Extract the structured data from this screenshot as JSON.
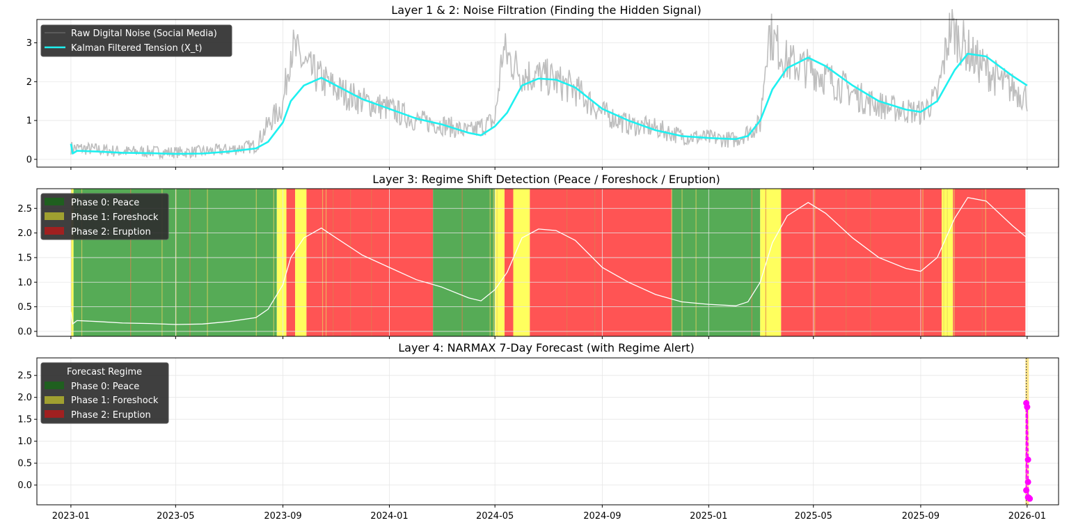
{
  "chart_data": [
    {
      "type": "line",
      "title": "Layer 1 & 2: Noise Filtration (Finding the Hidden Signal)",
      "xlabel": "",
      "ylabel": "",
      "ylim": [
        -0.2,
        3.6
      ],
      "yticks": [
        "0",
        "1",
        "2",
        "3"
      ],
      "grid": true,
      "legend": {
        "placement": "top-left",
        "entries": [
          "Raw Digital Noise (Social Media)",
          "Kalman Filtered Tension (X_t)"
        ]
      },
      "colors": {
        "raw": "#bebebe",
        "kalman": "#1ff0f0"
      },
      "series": [
        {
          "name": "Kalman Filtered Tension (X_t)",
          "x": [
            "2023-01-01",
            "2023-01-03",
            "2023-01-08",
            "2023-02-01",
            "2023-03-01",
            "2023-04-01",
            "2023-05-01",
            "2023-06-01",
            "2023-07-01",
            "2023-08-01",
            "2023-08-15",
            "2023-09-01",
            "2023-09-10",
            "2023-09-25",
            "2023-10-15",
            "2023-11-01",
            "2023-12-01",
            "2024-01-01",
            "2024-02-01",
            "2024-03-01",
            "2024-04-01",
            "2024-04-15",
            "2024-05-01",
            "2024-05-15",
            "2024-06-01",
            "2024-06-20",
            "2024-07-10",
            "2024-08-01",
            "2024-09-01",
            "2024-10-01",
            "2024-11-01",
            "2024-12-01",
            "2025-01-01",
            "2025-02-01",
            "2025-02-15",
            "2025-03-01",
            "2025-03-15",
            "2025-04-01",
            "2025-04-25",
            "2025-05-15",
            "2025-06-15",
            "2025-07-15",
            "2025-08-15",
            "2025-09-01",
            "2025-09-20",
            "2025-10-10",
            "2025-10-25",
            "2025-11-15",
            "2025-12-15",
            "2026-01-01"
          ],
          "values": [
            0.4,
            0.15,
            0.22,
            0.2,
            0.17,
            0.16,
            0.14,
            0.15,
            0.2,
            0.28,
            0.45,
            0.95,
            1.5,
            1.9,
            2.1,
            1.9,
            1.55,
            1.3,
            1.05,
            0.9,
            0.68,
            0.62,
            0.85,
            1.2,
            1.9,
            2.08,
            2.05,
            1.85,
            1.3,
            1.0,
            0.75,
            0.6,
            0.55,
            0.52,
            0.6,
            1.0,
            1.8,
            2.35,
            2.62,
            2.4,
            1.9,
            1.5,
            1.28,
            1.22,
            1.5,
            2.3,
            2.72,
            2.65,
            2.15,
            1.9
          ]
        },
        {
          "name": "Raw Digital Noise (Social Media)",
          "note_free": true,
          "x": [
            "2023-01-01",
            "2023-02-01",
            "2023-03-01",
            "2023-04-01",
            "2023-05-01",
            "2023-06-01",
            "2023-07-01",
            "2023-08-01",
            "2023-08-15",
            "2023-09-01",
            "2023-09-10",
            "2023-10-01",
            "2023-11-01",
            "2023-12-01",
            "2024-01-01",
            "2024-02-01",
            "2024-03-01",
            "2024-04-01",
            "2024-05-01",
            "2024-05-10",
            "2024-06-01",
            "2024-07-01",
            "2024-08-01",
            "2024-09-01",
            "2024-10-01",
            "2024-11-01",
            "2024-12-01",
            "2025-01-01",
            "2025-02-01",
            "2025-03-01",
            "2025-03-10",
            "2025-04-01",
            "2025-05-01",
            "2025-06-01",
            "2025-07-01",
            "2025-08-01",
            "2025-09-01",
            "2025-09-20",
            "2025-10-05",
            "2025-11-01",
            "2025-12-01",
            "2026-01-01"
          ],
          "values": [
            0.3,
            0.25,
            0.2,
            0.2,
            0.18,
            0.2,
            0.25,
            0.35,
            0.9,
            1.4,
            2.9,
            2.3,
            1.8,
            1.5,
            1.3,
            1.0,
            0.9,
            0.7,
            1.0,
            2.8,
            2.2,
            2.1,
            1.8,
            1.2,
            0.9,
            0.8,
            0.6,
            0.55,
            0.5,
            0.9,
            3.3,
            2.5,
            2.3,
            1.9,
            1.5,
            1.3,
            1.2,
            1.6,
            3.4,
            2.6,
            2.0,
            1.6
          ]
        }
      ]
    },
    {
      "type": "area",
      "title": "Layer 3: Regime Shift Detection (Peace / Foreshock / Eruption)",
      "xlabel": "",
      "ylabel": "",
      "ylim": [
        -0.1,
        2.9
      ],
      "yticks": [
        "0.0",
        "0.5",
        "1.0",
        "1.5",
        "2.0",
        "2.5"
      ],
      "grid": true,
      "legend": {
        "placement": "top-left",
        "entries": [
          "Phase 0: Peace",
          "Phase 1: Foreshock",
          "Phase 2: Eruption"
        ]
      },
      "colors": {
        "peace": "#4da64d",
        "foreshock": "#ffff55",
        "eruption": "#ff4b4b",
        "line": "#ffffff"
      },
      "regimes": [
        {
          "start": "2023-01-01",
          "end": "2023-01-04",
          "phase": 1
        },
        {
          "start": "2023-01-04",
          "end": "2023-08-25",
          "phase": 0
        },
        {
          "start": "2023-08-25",
          "end": "2023-09-05",
          "phase": 1
        },
        {
          "start": "2023-09-05",
          "end": "2023-09-15",
          "phase": 2
        },
        {
          "start": "2023-09-15",
          "end": "2023-09-28",
          "phase": 1
        },
        {
          "start": "2023-09-28",
          "end": "2024-02-20",
          "phase": 2
        },
        {
          "start": "2024-02-20",
          "end": "2024-05-01",
          "phase": 0
        },
        {
          "start": "2024-05-01",
          "end": "2024-05-12",
          "phase": 1
        },
        {
          "start": "2024-05-12",
          "end": "2024-05-22",
          "phase": 2
        },
        {
          "start": "2024-05-22",
          "end": "2024-06-10",
          "phase": 1
        },
        {
          "start": "2024-06-10",
          "end": "2024-11-20",
          "phase": 2
        },
        {
          "start": "2024-11-20",
          "end": "2025-03-01",
          "phase": 0
        },
        {
          "start": "2025-03-01",
          "end": "2025-03-25",
          "phase": 1
        },
        {
          "start": "2025-03-25",
          "end": "2025-09-25",
          "phase": 2
        },
        {
          "start": "2025-09-25",
          "end": "2025-10-08",
          "phase": 1
        },
        {
          "start": "2025-10-08",
          "end": "2025-12-30",
          "phase": 2
        }
      ],
      "series": [
        {
          "name": "",
          "ref": "Kalman Filtered Tension (X_t)"
        }
      ]
    },
    {
      "type": "line",
      "title": "Layer 4: NARMAX 7-Day Forecast (with Regime Alert)",
      "xlabel": "",
      "ylabel": "",
      "ylim": [
        -0.45,
        2.9
      ],
      "yticks": [
        "0.0",
        "0.5",
        "1.0",
        "1.5",
        "2.0",
        "2.5"
      ],
      "grid": true,
      "legend": {
        "placement": "top-left",
        "title": "Forecast Regime",
        "entries": [
          "Phase 0: Peace",
          "Phase 1: Foreshock",
          "Phase 2: Eruption"
        ]
      },
      "colors": {
        "forecast": "#ff00ff",
        "band": "#ffe066",
        "peace": "#1f5f1f",
        "foreshock": "#a0a030",
        "eruption": "#a02020"
      },
      "series": [
        {
          "name": "",
          "x": [
            "2025-12-31",
            "2025-12-31",
            "2026-01-01",
            "2026-01-02",
            "2026-01-02",
            "2026-01-02",
            "2026-01-03",
            "2026-01-04"
          ],
          "values": [
            1.87,
            -0.12,
            1.78,
            0.58,
            0.07,
            -0.28,
            -0.29,
            -0.31
          ]
        }
      ]
    }
  ],
  "x_axis": {
    "ticks": [
      "2023-01",
      "2023-05",
      "2023-09",
      "2024-01",
      "2024-05",
      "2024-09",
      "2025-01",
      "2025-05",
      "2025-09",
      "2026-01"
    ],
    "range": [
      "2022-11-23",
      "2026-02-06"
    ]
  }
}
